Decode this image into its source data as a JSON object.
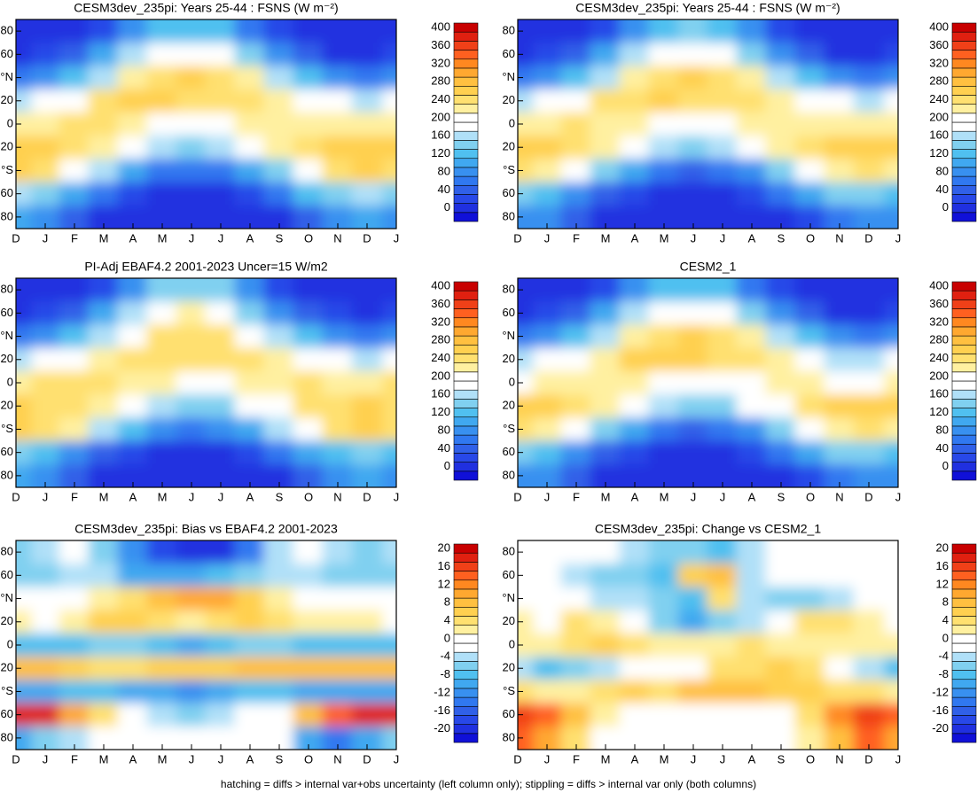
{
  "chart_data": [
    {
      "type": "heatmap",
      "title": "CESM3dev_235pi: Years 25-44 : FSNS (W m⁻²)",
      "categories": [
        "D",
        "J",
        "F",
        "M",
        "A",
        "M",
        "J",
        "J",
        "A",
        "S",
        "O",
        "N",
        "D",
        "J"
      ],
      "y": [
        80,
        60,
        40,
        20,
        0,
        -20,
        -40,
        -60,
        -80
      ],
      "ylim": [
        -90,
        90
      ],
      "yticks": [
        80,
        60,
        {
          "value": 40,
          "label": "°N"
        },
        20,
        0,
        {
          "value": -20,
          "label": "20"
        },
        {
          "value": -40,
          "label": "°S"
        },
        {
          "value": -60,
          "label": "60"
        },
        {
          "value": -80,
          "label": "80"
        }
      ],
      "cblim": [
        -20,
        420
      ],
      "cbticks": [
        0,
        40,
        80,
        120,
        160,
        200,
        240,
        280,
        320,
        360,
        400
      ],
      "values": [
        [
          0,
          5,
          30,
          80,
          120,
          130,
          120,
          70,
          25,
          5,
          0,
          0
        ],
        [
          20,
          50,
          100,
          160,
          200,
          210,
          190,
          150,
          90,
          40,
          15,
          10
        ],
        [
          80,
          120,
          170,
          220,
          250,
          260,
          250,
          220,
          170,
          120,
          80,
          60
        ],
        [
          180,
          210,
          240,
          260,
          260,
          250,
          250,
          250,
          230,
          200,
          180,
          170
        ],
        [
          230,
          240,
          240,
          230,
          210,
          190,
          200,
          220,
          230,
          230,
          220,
          220
        ],
        [
          260,
          250,
          230,
          200,
          170,
          150,
          160,
          190,
          220,
          250,
          260,
          270
        ],
        [
          240,
          210,
          160,
          110,
          70,
          60,
          70,
          100,
          150,
          200,
          240,
          260
        ],
        [
          140,
          100,
          60,
          30,
          10,
          5,
          10,
          30,
          70,
          120,
          150,
          160
        ],
        [
          90,
          50,
          10,
          0,
          0,
          0,
          0,
          0,
          10,
          40,
          80,
          100
        ]
      ]
    },
    {
      "type": "heatmap",
      "title": "CESM3dev_235pi: Years 25-44 : FSNS (W m⁻²)",
      "categories": [
        "D",
        "J",
        "F",
        "M",
        "A",
        "M",
        "J",
        "J",
        "A",
        "S",
        "O",
        "N",
        "D",
        "J"
      ],
      "y": [
        80,
        60,
        40,
        20,
        0,
        -20,
        -40,
        -60,
        -80
      ],
      "ylim": [
        -90,
        90
      ],
      "yticks": [
        80,
        60,
        {
          "value": 40,
          "label": "°N"
        },
        20,
        0,
        {
          "value": -20,
          "label": "20"
        },
        {
          "value": -40,
          "label": "°S"
        },
        {
          "value": -60,
          "label": "60"
        },
        {
          "value": -80,
          "label": "80"
        }
      ],
      "cblim": [
        -20,
        420
      ],
      "cbticks": [
        0,
        40,
        80,
        120,
        160,
        200,
        240,
        280,
        320,
        360,
        400
      ],
      "values": [
        [
          0,
          5,
          30,
          90,
          130,
          140,
          130,
          80,
          25,
          5,
          0,
          0
        ],
        [
          20,
          50,
          110,
          170,
          200,
          210,
          200,
          150,
          90,
          40,
          15,
          10
        ],
        [
          80,
          120,
          170,
          220,
          250,
          260,
          250,
          220,
          170,
          120,
          80,
          60
        ],
        [
          180,
          210,
          240,
          255,
          260,
          250,
          250,
          250,
          230,
          200,
          180,
          170
        ],
        [
          230,
          240,
          235,
          225,
          210,
          195,
          200,
          220,
          230,
          230,
          225,
          220
        ],
        [
          260,
          250,
          230,
          200,
          170,
          150,
          160,
          190,
          220,
          250,
          260,
          270
        ],
        [
          230,
          200,
          150,
          100,
          60,
          50,
          60,
          90,
          140,
          190,
          230,
          250
        ],
        [
          130,
          90,
          55,
          25,
          8,
          4,
          8,
          25,
          60,
          110,
          140,
          150
        ],
        [
          80,
          40,
          10,
          0,
          0,
          0,
          0,
          0,
          10,
          30,
          70,
          90
        ]
      ]
    },
    {
      "type": "heatmap",
      "title": "PI-Adj EBAF4.2 2001-2023 Uncer=15 W/m2",
      "categories": [
        "D",
        "J",
        "F",
        "M",
        "A",
        "M",
        "J",
        "J",
        "A",
        "S",
        "O",
        "N",
        "D",
        "J"
      ],
      "y": [
        80,
        60,
        40,
        20,
        0,
        -20,
        -40,
        -60,
        -80
      ],
      "ylim": [
        -90,
        90
      ],
      "yticks": [
        80,
        60,
        {
          "value": 40,
          "label": "°N"
        },
        20,
        0,
        {
          "value": -20,
          "label": "20"
        },
        {
          "value": -40,
          "label": "°S"
        },
        {
          "value": -60,
          "label": "60"
        },
        {
          "value": -80,
          "label": "80"
        }
      ],
      "cblim": [
        -20,
        420
      ],
      "cbticks": [
        0,
        40,
        80,
        120,
        160,
        200,
        240,
        280,
        320,
        360,
        400
      ],
      "values": [
        [
          0,
          5,
          35,
          95,
          140,
          150,
          140,
          85,
          30,
          5,
          0,
          0
        ],
        [
          25,
          55,
          105,
          170,
          210,
          220,
          200,
          155,
          95,
          45,
          20,
          15
        ],
        [
          80,
          120,
          165,
          215,
          245,
          250,
          240,
          215,
          165,
          120,
          80,
          60
        ],
        [
          180,
          205,
          235,
          255,
          255,
          250,
          245,
          245,
          225,
          200,
          180,
          170
        ],
        [
          240,
          245,
          245,
          235,
          220,
          200,
          210,
          225,
          235,
          240,
          230,
          230
        ],
        [
          255,
          245,
          225,
          195,
          165,
          145,
          155,
          185,
          215,
          245,
          255,
          265
        ],
        [
          250,
          220,
          170,
          120,
          80,
          70,
          80,
          110,
          160,
          210,
          250,
          270
        ],
        [
          125,
          90,
          55,
          30,
          12,
          6,
          12,
          30,
          65,
          110,
          135,
          145
        ],
        [
          95,
          55,
          12,
          0,
          0,
          0,
          0,
          0,
          12,
          50,
          95,
          110
        ]
      ]
    },
    {
      "type": "heatmap",
      "title": "CESM2_1",
      "categories": [
        "D",
        "J",
        "F",
        "M",
        "A",
        "M",
        "J",
        "J",
        "A",
        "S",
        "O",
        "N",
        "D",
        "J"
      ],
      "y": [
        80,
        60,
        40,
        20,
        0,
        -20,
        -40,
        -60,
        -80
      ],
      "ylim": [
        -90,
        90
      ],
      "yticks": [
        80,
        60,
        {
          "value": 40,
          "label": "°N"
        },
        20,
        0,
        {
          "value": -20,
          "label": "20"
        },
        {
          "value": -40,
          "label": "°S"
        },
        {
          "value": -60,
          "label": "60"
        },
        {
          "value": -80,
          "label": "80"
        }
      ],
      "cblim": [
        -20,
        420
      ],
      "cbticks": [
        0,
        40,
        80,
        120,
        160,
        200,
        240,
        280,
        320,
        360,
        400
      ],
      "values": [
        [
          0,
          5,
          30,
          85,
          125,
          135,
          120,
          75,
          25,
          5,
          0,
          0
        ],
        [
          20,
          55,
          105,
          165,
          205,
          205,
          185,
          150,
          95,
          40,
          15,
          10
        ],
        [
          80,
          120,
          170,
          225,
          255,
          265,
          245,
          220,
          175,
          125,
          85,
          60
        ],
        [
          180,
          205,
          235,
          260,
          265,
          260,
          255,
          250,
          230,
          195,
          175,
          170
        ],
        [
          225,
          235,
          235,
          225,
          210,
          190,
          195,
          215,
          225,
          225,
          215,
          215
        ],
        [
          265,
          255,
          230,
          200,
          170,
          150,
          155,
          185,
          215,
          245,
          260,
          270
        ],
        [
          235,
          205,
          155,
          105,
          65,
          55,
          65,
          95,
          145,
          195,
          235,
          255
        ],
        [
          125,
          90,
          55,
          28,
          10,
          5,
          10,
          28,
          65,
          115,
          140,
          145
        ],
        [
          80,
          45,
          10,
          0,
          0,
          0,
          0,
          0,
          10,
          35,
          70,
          85
        ]
      ]
    },
    {
      "type": "heatmap",
      "title": "CESM3dev_235pi: Bias vs EBAF4.2 2001-2023",
      "categories": [
        "D",
        "J",
        "F",
        "M",
        "A",
        "M",
        "J",
        "J",
        "A",
        "S",
        "O",
        "N",
        "D",
        "J"
      ],
      "y": [
        80,
        60,
        40,
        20,
        0,
        -20,
        -40,
        -60,
        -80
      ],
      "ylim": [
        -90,
        90
      ],
      "yticks": [
        80,
        60,
        {
          "value": 40,
          "label": "°N"
        },
        20,
        0,
        {
          "value": -20,
          "label": "20"
        },
        {
          "value": -40,
          "label": "°S"
        },
        {
          "value": -60,
          "label": "60"
        },
        {
          "value": -80,
          "label": "80"
        }
      ],
      "cblim": [
        -22,
        22
      ],
      "cbticks": [
        -20,
        -16,
        -12,
        -8,
        -4,
        0,
        4,
        8,
        12,
        16,
        20
      ],
      "values": [
        [
          -4,
          -2,
          -6,
          -12,
          -18,
          -20,
          -20,
          -14,
          -4,
          -2,
          -4,
          -6
        ],
        [
          -6,
          -4,
          -4,
          -10,
          -10,
          -10,
          -8,
          -6,
          -4,
          -4,
          -6,
          -6
        ],
        [
          -2,
          0,
          2,
          4,
          8,
          10,
          10,
          6,
          2,
          0,
          -2,
          -2
        ],
        [
          0,
          2,
          6,
          6,
          4,
          2,
          4,
          6,
          4,
          2,
          2,
          2
        ],
        [
          -8,
          -8,
          -6,
          -6,
          -8,
          -10,
          -8,
          -6,
          -6,
          -8,
          -8,
          -8
        ],
        [
          8,
          6,
          4,
          4,
          6,
          6,
          6,
          8,
          8,
          8,
          8,
          8
        ],
        [
          -10,
          -8,
          -8,
          -10,
          -10,
          -12,
          -10,
          -8,
          -8,
          -10,
          -10,
          -10
        ],
        [
          18,
          10,
          4,
          -2,
          -4,
          -6,
          -4,
          -2,
          0,
          8,
          14,
          18
        ],
        [
          -6,
          -4,
          -2,
          0,
          0,
          0,
          0,
          0,
          -2,
          -10,
          -14,
          -10
        ]
      ]
    },
    {
      "type": "heatmap",
      "title": "CESM3dev_235pi: Change vs CESM2_1",
      "categories": [
        "D",
        "J",
        "F",
        "M",
        "A",
        "M",
        "J",
        "J",
        "A",
        "S",
        "O",
        "N",
        "D",
        "J"
      ],
      "y": [
        80,
        60,
        40,
        20,
        0,
        -20,
        -40,
        -60,
        -80
      ],
      "ylim": [
        -90,
        90
      ],
      "yticks": [
        80,
        60,
        {
          "value": 40,
          "label": "°N"
        },
        20,
        0,
        {
          "value": -20,
          "label": "20"
        },
        {
          "value": -40,
          "label": "°S"
        },
        {
          "value": -60,
          "label": "60"
        },
        {
          "value": -80,
          "label": "80"
        }
      ],
      "cblim": [
        -22,
        22
      ],
      "cbticks": [
        -20,
        -16,
        -12,
        -8,
        -4,
        0,
        4,
        8,
        12,
        16,
        20
      ],
      "values": [
        [
          0,
          0,
          0,
          -4,
          -6,
          -6,
          -8,
          -4,
          0,
          0,
          0,
          0
        ],
        [
          -2,
          -4,
          -6,
          -6,
          -8,
          6,
          8,
          -4,
          -2,
          -2,
          0,
          0
        ],
        [
          -2,
          -2,
          -4,
          -4,
          -6,
          -8,
          4,
          -4,
          -6,
          -6,
          -4,
          -2
        ],
        [
          0,
          4,
          2,
          0,
          -6,
          -10,
          -6,
          -4,
          -2,
          4,
          4,
          2
        ],
        [
          2,
          4,
          6,
          4,
          2,
          2,
          2,
          4,
          2,
          2,
          2,
          2
        ],
        [
          -8,
          -6,
          -4,
          -2,
          -2,
          0,
          4,
          4,
          6,
          4,
          0,
          -4
        ],
        [
          2,
          2,
          4,
          6,
          4,
          8,
          8,
          8,
          6,
          6,
          4,
          4
        ],
        [
          14,
          8,
          2,
          0,
          -2,
          -2,
          0,
          0,
          0,
          4,
          12,
          16
        ],
        [
          10,
          4,
          0,
          0,
          0,
          0,
          0,
          0,
          0,
          2,
          8,
          14
        ]
      ]
    }
  ],
  "palette": [
    "#1010d8",
    "#2030e0",
    "#2848e8",
    "#3060e8",
    "#3078f0",
    "#3890f0",
    "#40a8f0",
    "#50c0f0",
    "#80d0f0",
    "#b0e0f8",
    "#ffffff",
    "#ffffff",
    "#fff0a0",
    "#ffe070",
    "#ffd050",
    "#ffc040",
    "#ffa830",
    "#ff8820",
    "#ff6020",
    "#f04018",
    "#e02010",
    "#c80000"
  ],
  "caption": "hatching = diffs > internal var+obs uncertainty (left column only); stippling = diffs > internal var only (both columns)"
}
